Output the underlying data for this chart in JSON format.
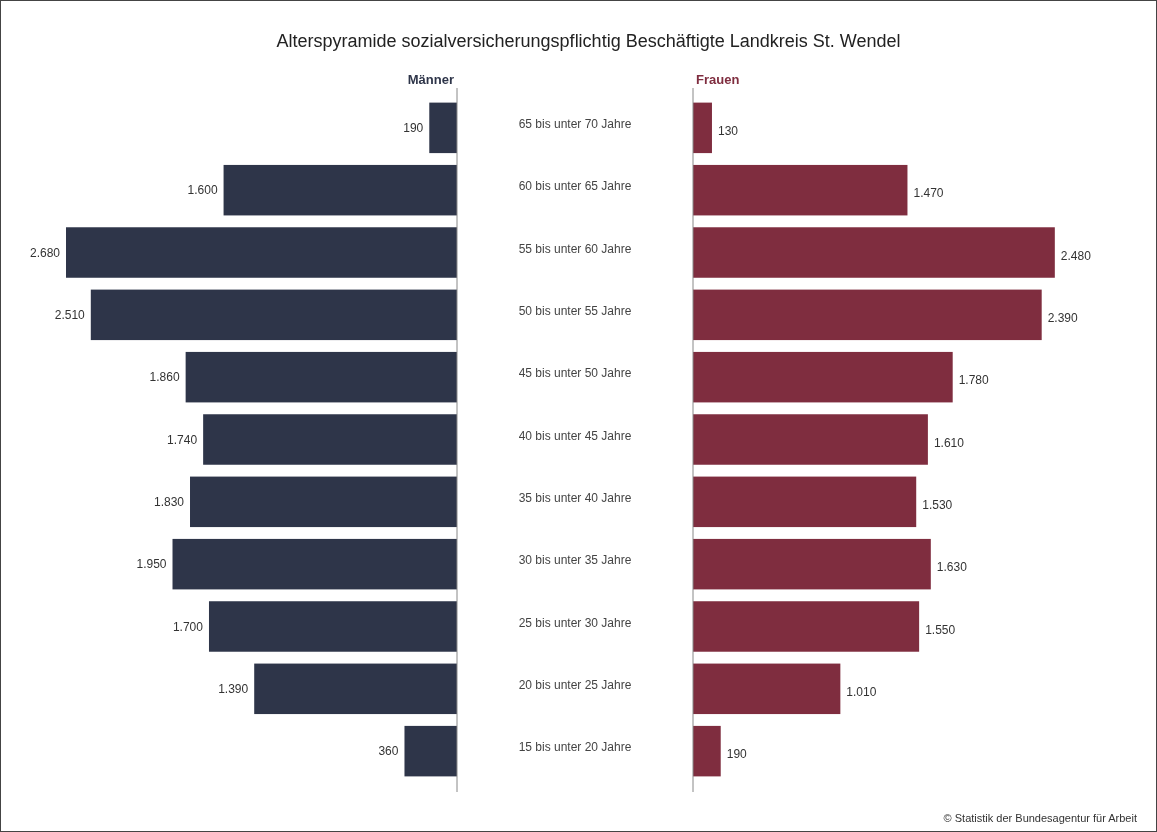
{
  "chart_data": [
    {
      "type": "bar",
      "orientation": "horizontal",
      "title": "Alterspyramide sozialversicherungspflichtig Beschäftigte Landkreis St. Wendel",
      "categories": [
        "65 bis unter 70 Jahre",
        "60 bis unter 65 Jahre",
        "55 bis unter 60 Jahre",
        "50 bis unter 55 Jahre",
        "45 bis unter 50 Jahre",
        "40 bis unter 45 Jahre",
        "35 bis unter 40 Jahre",
        "30 bis unter 35 Jahre",
        "25 bis unter 30 Jahre",
        "20 bis unter 25 Jahre",
        "15 bis unter 20 Jahre"
      ],
      "series": [
        {
          "name": "Männer",
          "color": "#2e3549",
          "values": [
            190,
            1600,
            2680,
            2510,
            1860,
            1740,
            1830,
            1950,
            1700,
            1390,
            360
          ],
          "value_labels": [
            "190",
            "1.600",
            "2.680",
            "2.510",
            "1.860",
            "1.740",
            "1.830",
            "1.950",
            "1.700",
            "1.390",
            "360"
          ]
        }
      ]
    },
    {
      "type": "bar",
      "orientation": "horizontal",
      "categories": [
        null,
        null,
        null,
        null,
        null,
        null,
        null,
        null,
        null,
        null,
        null
      ],
      "series": [
        {
          "name": "Frauen",
          "color": "#7f2d3f",
          "values": [
            130,
            1470,
            2480,
            2390,
            1780,
            1610,
            1530,
            1630,
            1550,
            1010,
            190
          ],
          "value_labels": [
            "130",
            "1.470",
            "2.480",
            "2.390",
            "1.780",
            "1.610",
            "1.530",
            "1.630",
            "1.550",
            "1.010",
            "190"
          ]
        }
      ],
      "annotations": [
        "© Statistik der Bundesagentur für Arbeit"
      ]
    }
  ]
}
